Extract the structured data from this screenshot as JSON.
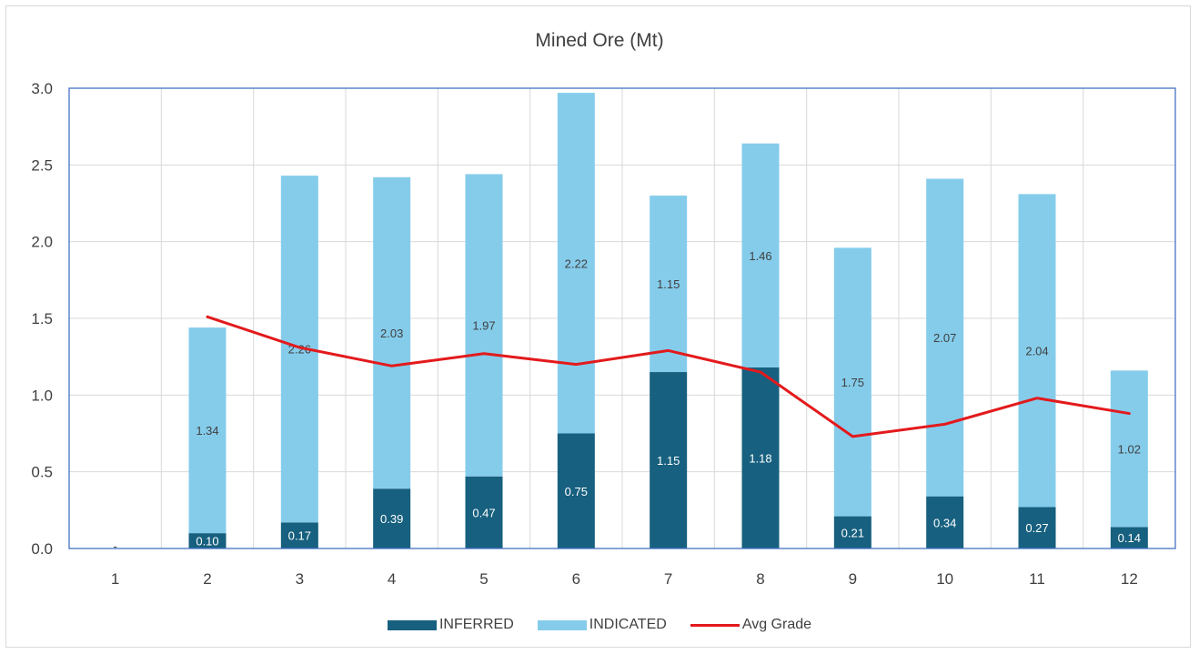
{
  "chart_data": {
    "type": "bar",
    "stacked": true,
    "title": "Mined Ore (Mt)",
    "xlabel": "",
    "ylabel": "",
    "categories": [
      "1",
      "2",
      "3",
      "4",
      "5",
      "6",
      "7",
      "8",
      "9",
      "10",
      "11",
      "12"
    ],
    "ylim": [
      0,
      3.0
    ],
    "yticks": [
      "0.0",
      "0.5",
      "1.0",
      "1.5",
      "2.0",
      "2.5",
      "3.0"
    ],
    "grid": true,
    "legend_position": "bottom",
    "series": [
      {
        "name": "INFERRED",
        "kind": "bar",
        "color": "#17607f",
        "label_color": "#ffffff",
        "values": [
          0.0,
          0.1,
          0.17,
          0.39,
          0.47,
          0.75,
          1.15,
          1.18,
          0.21,
          0.34,
          0.27,
          0.14
        ],
        "labels": [
          "-",
          "0.10",
          "0.17",
          "0.39",
          "0.47",
          "0.75",
          "1.15",
          "1.18",
          "0.21",
          "0.34",
          "0.27",
          "0.14"
        ]
      },
      {
        "name": "INDICATED",
        "kind": "bar",
        "color": "#85cceb",
        "label_color": "#404040",
        "values": [
          0.0,
          1.34,
          2.26,
          2.03,
          1.97,
          2.22,
          1.15,
          1.46,
          1.75,
          2.07,
          2.04,
          1.02
        ],
        "labels": [
          "",
          "1.34",
          "2.26",
          "2.03",
          "1.97",
          "2.22",
          "1.15",
          "1.46",
          "1.75",
          "2.07",
          "2.04",
          "1.02"
        ]
      },
      {
        "name": "Avg Grade",
        "kind": "line",
        "color": "#e31a1c",
        "values": [
          null,
          1.51,
          1.31,
          1.19,
          1.27,
          1.2,
          1.29,
          1.15,
          0.73,
          0.81,
          0.98,
          0.88
        ]
      }
    ],
    "colors": {
      "axis": "#4472c4",
      "grid": "#d9d9d9",
      "text": "#404040"
    }
  }
}
